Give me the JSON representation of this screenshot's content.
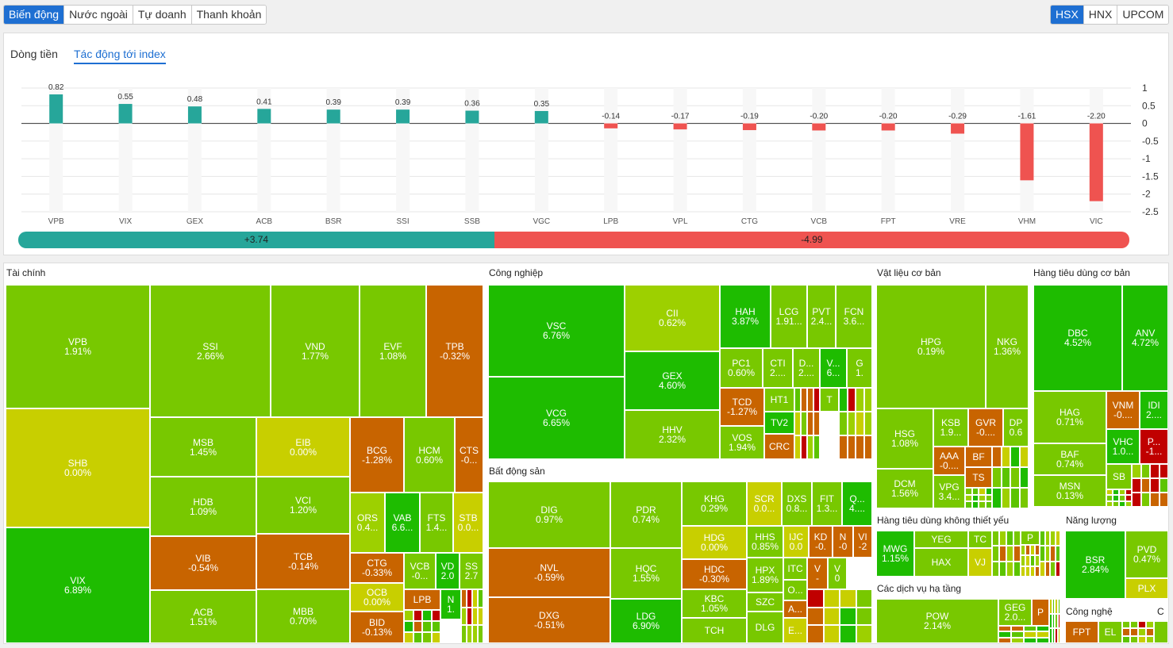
{
  "top_tabs": [
    "Biến động",
    "Nước ngoài",
    "Tự doanh",
    "Thanh khoản"
  ],
  "exchange_tabs": [
    "HSX",
    "HNX",
    "UPCOM"
  ],
  "chart_tabs": [
    "Dòng tiền",
    "Tác động tới index"
  ],
  "chart_data": {
    "type": "bar",
    "categories": [
      "VPB",
      "VIX",
      "GEX",
      "ACB",
      "BSR",
      "SSI",
      "SSB",
      "VGC",
      "LPB",
      "VPL",
      "CTG",
      "VCB",
      "FPT",
      "VRE",
      "VHM",
      "VIC"
    ],
    "values": [
      0.82,
      0.55,
      0.48,
      0.41,
      0.39,
      0.39,
      0.36,
      0.35,
      -0.14,
      -0.17,
      -0.19,
      -0.2,
      -0.2,
      -0.29,
      -1.61,
      -2.2
    ],
    "value_labels": [
      "0.82",
      "0.55",
      "0.48",
      "0.41",
      "0.39",
      "0.39",
      "0.36",
      "0.35",
      "-0.14",
      "-0.17",
      "-0.19",
      "-0.20",
      "-0.20",
      "-0.29",
      "-1.61",
      "-2.20"
    ],
    "yticks": [
      "1",
      "0.5",
      "0",
      "-0.5",
      "-1",
      "-1.5",
      "-2",
      "-2.5"
    ],
    "ylim": [
      -2.5,
      1
    ],
    "positive_color": "#26a69a",
    "negative_color": "#ef5350"
  },
  "summary": {
    "positive": "+3.74",
    "negative": "-4.99"
  },
  "sectors": [
    "Tài chính",
    "Công nghiệp",
    "Bất động sản",
    "Vật liệu cơ bản",
    "Hàng tiêu dùng cơ bản",
    "Hàng tiêu dùng không thiết yếu",
    "Năng lượng",
    "Các dịch vụ hạ tầng",
    "Công nghệ",
    "C"
  ],
  "colors": {
    "green": "#5cc400",
    "bright": "#1ebc00",
    "lime": "#78c800",
    "yellowgreen": "#9dd000",
    "yellow": "#c8cf00",
    "orange": "#c86400",
    "red": "#c00000"
  },
  "tiles": [
    [
      "VPB",
      "1.91%"
    ],
    [
      "SHB",
      "0.00%"
    ],
    [
      "VIX",
      "6.89%"
    ],
    [
      "SSI",
      "2.66%"
    ],
    [
      "VND",
      "1.77%"
    ],
    [
      "EVF",
      "1.08%"
    ],
    [
      "TPB",
      "-0.32%"
    ],
    [
      "MSB",
      "1.45%"
    ],
    [
      "EIB",
      "0.00%"
    ],
    [
      "HDB",
      "1.09%"
    ],
    [
      "VCI",
      "1.20%"
    ],
    [
      "BCG",
      "-1.28%"
    ],
    [
      "HCM",
      "0.60%"
    ],
    [
      "CTS",
      "-0..."
    ],
    [
      "VIB",
      "-0.54%"
    ],
    [
      "TCB",
      "-0.14%"
    ],
    [
      "ORS",
      "0.4..."
    ],
    [
      "VAB",
      "6.6..."
    ],
    [
      "FTS",
      "1.4..."
    ],
    [
      "STB",
      "0.0..."
    ],
    [
      "ACB",
      "1.51%"
    ],
    [
      "MBB",
      "0.70%"
    ],
    [
      "CTG",
      "-0.33%"
    ],
    [
      "VCB",
      "-0..."
    ],
    [
      "VD",
      "2.0"
    ],
    [
      "SS",
      "2.7"
    ],
    [
      "OCB",
      "0.00%"
    ],
    [
      "LPB",
      ""
    ],
    [
      "N",
      "1."
    ],
    [
      "BID",
      "-0.13%"
    ],
    [
      "VSC",
      "6.76%"
    ],
    [
      "VCG",
      "6.65%"
    ],
    [
      "CII",
      "0.62%"
    ],
    [
      "HAH",
      "3.87%"
    ],
    [
      "LCG",
      "1.91..."
    ],
    [
      "PVT",
      "2.4..."
    ],
    [
      "FCN",
      "3.6..."
    ],
    [
      "GEX",
      "4.60%"
    ],
    [
      "PC1",
      "0.60%"
    ],
    [
      "CTI",
      "2...."
    ],
    [
      "D...",
      "2...."
    ],
    [
      "V...",
      "6..."
    ],
    [
      "G",
      "1."
    ],
    [
      "TCD",
      "-1.27%"
    ],
    [
      "HT1",
      ""
    ],
    [
      "T",
      ""
    ],
    [
      "HHV",
      "2.32%"
    ],
    [
      "TV2",
      ""
    ],
    [
      "VOS",
      "1.94%"
    ],
    [
      "CRC",
      ""
    ],
    [
      "DIG",
      "0.97%"
    ],
    [
      "PDR",
      "0.74%"
    ],
    [
      "KHG",
      "0.29%"
    ],
    [
      "SCR",
      "0.0..."
    ],
    [
      "DXS",
      "0.8..."
    ],
    [
      "FIT",
      "1.3..."
    ],
    [
      "Q...",
      "4...."
    ],
    [
      "HDG",
      "0.00%"
    ],
    [
      "HHS",
      "0.85%"
    ],
    [
      "IJC",
      "0.0"
    ],
    [
      "KD",
      "-0."
    ],
    [
      "N",
      "-0"
    ],
    [
      "VI",
      "-2"
    ],
    [
      "NVL",
      "-0.59%"
    ],
    [
      "HQC",
      "1.55%"
    ],
    [
      "HDC",
      "-0.30%"
    ],
    [
      "HPX",
      "1.89%"
    ],
    [
      "ITC",
      ""
    ],
    [
      "V",
      "-"
    ],
    [
      "V",
      "0"
    ],
    [
      "O...",
      ""
    ],
    [
      "KBC",
      "1.05%"
    ],
    [
      "SZC",
      ""
    ],
    [
      "A...",
      ""
    ],
    [
      "DXG",
      "-0.51%"
    ],
    [
      "LDG",
      "6.90%"
    ],
    [
      "TCH",
      ""
    ],
    [
      "DLG",
      ""
    ],
    [
      "E...",
      ""
    ],
    [
      "HPG",
      "0.19%"
    ],
    [
      "NKG",
      "1.36%"
    ],
    [
      "HSG",
      "1.08%"
    ],
    [
      "KSB",
      "1.9..."
    ],
    [
      "GVR",
      "-0...."
    ],
    [
      "DP",
      "0.6"
    ],
    [
      "AAA",
      "-0...."
    ],
    [
      "BF",
      ""
    ],
    [
      "DCM",
      "1.56%"
    ],
    [
      "VPG",
      "3.4..."
    ],
    [
      "TS",
      ""
    ],
    [
      "DBC",
      "4.52%"
    ],
    [
      "ANV",
      "4.72%"
    ],
    [
      "HAG",
      "0.71%"
    ],
    [
      "VNM",
      "-0...."
    ],
    [
      "IDI",
      "2...."
    ],
    [
      "VHC",
      "1.0..."
    ],
    [
      "P...",
      "-1..."
    ],
    [
      "BAF",
      "0.74%"
    ],
    [
      "SB",
      ""
    ],
    [
      "MSN",
      "0.13%"
    ],
    [
      "MWG",
      "1.15%"
    ],
    [
      "YEG",
      ""
    ],
    [
      "TC",
      ""
    ],
    [
      "P",
      ""
    ],
    [
      "HAX",
      ""
    ],
    [
      "VJ",
      ""
    ],
    [
      "BSR",
      "2.84%"
    ],
    [
      "PVD",
      "0.47%"
    ],
    [
      "PLX",
      ""
    ],
    [
      "POW",
      "2.14%"
    ],
    [
      "GEG",
      "2.0..."
    ],
    [
      "P",
      ""
    ],
    [
      "FPT",
      ""
    ],
    [
      "EL",
      ""
    ]
  ]
}
